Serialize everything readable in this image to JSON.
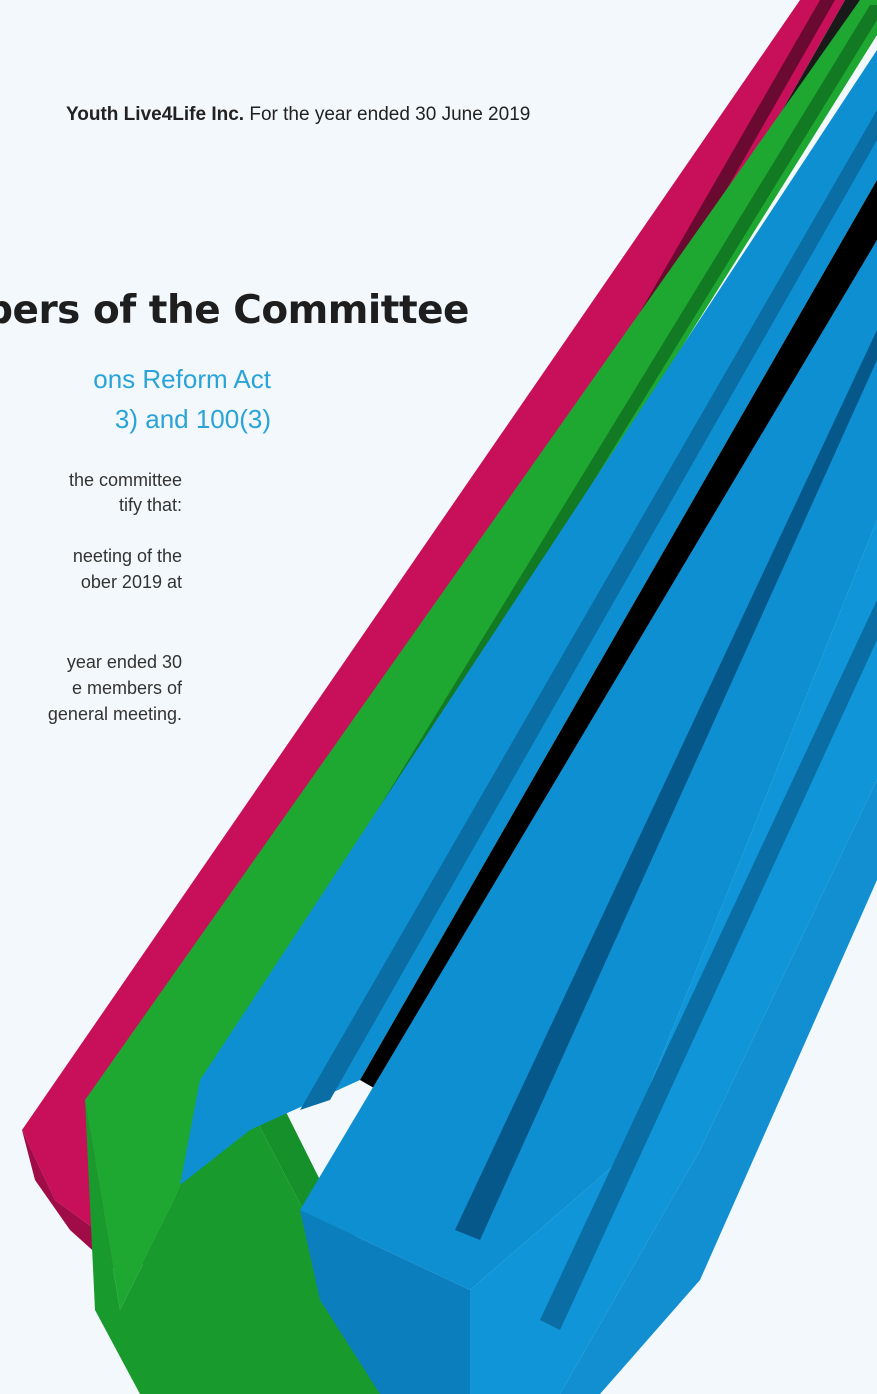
{
  "header": {
    "org_name": "Youth Live4Life Inc.",
    "period": "For the year ended 30 June 2019"
  },
  "heading": "nbers of the Committee",
  "subheading": {
    "line1": "ons Reform Act",
    "line2": "3) and 100(3)"
  },
  "body_lines": [
    "the committee",
    "tify that:",
    "neeting of the",
    "ober 2019 at",
    "year ended 30",
    "e members of",
    "general meeting."
  ],
  "colors": {
    "background": "#f2f8fc",
    "heading_text": "#1e1e1e",
    "subheading_text": "#2aa3d8",
    "bar_magenta": "#c80f5a",
    "bar_green": "#1ea832",
    "bar_blue": "#0d8fd2"
  }
}
